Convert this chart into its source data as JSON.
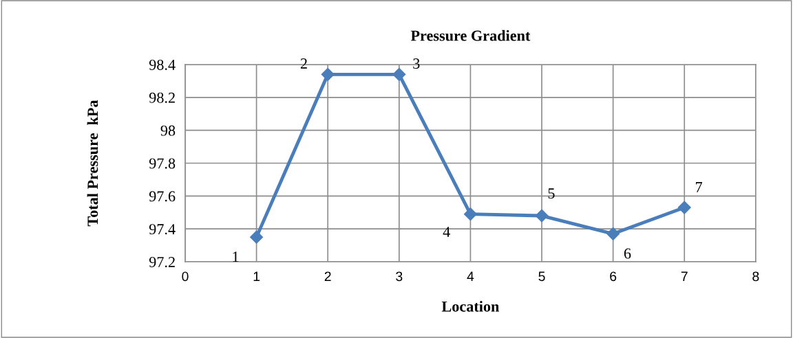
{
  "chart_data": {
    "type": "line",
    "title": "Pressure Gradient",
    "xlabel": "Location",
    "ylabel": "Total Pressure  kPa",
    "x": [
      1,
      2,
      3,
      4,
      5,
      6,
      7
    ],
    "series": [
      {
        "color": "#4a7ebb",
        "values": [
          97.35,
          98.34,
          98.34,
          97.49,
          97.48,
          97.37,
          97.53
        ]
      }
    ],
    "xlim": [
      0,
      8
    ],
    "xticks": [
      0,
      1,
      2,
      3,
      4,
      5,
      6,
      7,
      8
    ],
    "ylim": [
      97.2,
      98.4
    ],
    "yticks": [
      {
        "value": 97.2,
        "label": "97.2"
      },
      {
        "value": 97.4,
        "label": "97.4"
      },
      {
        "value": 97.6,
        "label": "97.6"
      },
      {
        "value": 97.8,
        "label": "97.8"
      },
      {
        "value": 98,
        "label": "98"
      },
      {
        "value": 98.2,
        "label": "98.2"
      },
      {
        "value": 98.4,
        "label": "98.4"
      }
    ],
    "annotations": [
      {
        "text": "1",
        "x": 1,
        "y": 97.35
      },
      {
        "text": "2",
        "x": 2,
        "y": 98.34
      },
      {
        "text": "3",
        "x": 3,
        "y": 98.34
      },
      {
        "text": "4",
        "x": 4,
        "y": 97.49
      },
      {
        "text": "5",
        "x": 5,
        "y": 97.48
      },
      {
        "text": "6",
        "x": 6,
        "y": 97.37
      },
      {
        "text": "7",
        "x": 7,
        "y": 97.53
      }
    ],
    "grid": true,
    "marker": "diamond",
    "line_style": "solid",
    "legend": false
  }
}
